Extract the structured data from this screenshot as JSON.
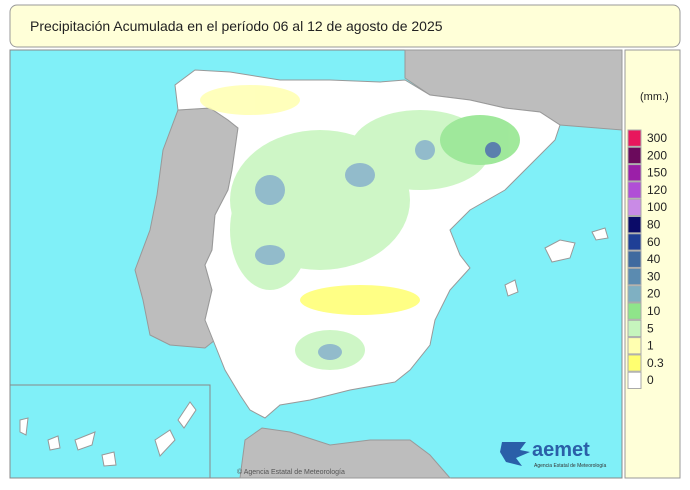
{
  "header": {
    "title": "Precipitación Acumulada en el período 06 al 12 de agosto de 2025"
  },
  "legend": {
    "unit": "(mm.)",
    "items": [
      {
        "label": 300,
        "color": "#e8175d"
      },
      {
        "label": 200,
        "color": "#6b0a5c"
      },
      {
        "label": 150,
        "color": "#9b1fa8"
      },
      {
        "label": 120,
        "color": "#b04fd6"
      },
      {
        "label": 100,
        "color": "#c98be6"
      },
      {
        "label": 80,
        "color": "#0b0b68"
      },
      {
        "label": 60,
        "color": "#1f3f96"
      },
      {
        "label": 40,
        "color": "#3f6a9f"
      },
      {
        "label": 30,
        "color": "#5b8bb0"
      },
      {
        "label": 20,
        "color": "#7fb0c2"
      },
      {
        "label": 10,
        "color": "#8fe58a"
      },
      {
        "label": 5,
        "color": "#c6f5bd"
      },
      {
        "label": 1,
        "color": "#ffffb0"
      },
      {
        "label": 0.3,
        "color": "#ffff70"
      },
      {
        "label": 0,
        "color": "#ffffff"
      }
    ]
  },
  "footer": {
    "credit": "© Agencia Estatal de Meteorología"
  },
  "logo": {
    "name": "aemet",
    "subtitle": "Agencia Estatal de Meteorología"
  }
}
